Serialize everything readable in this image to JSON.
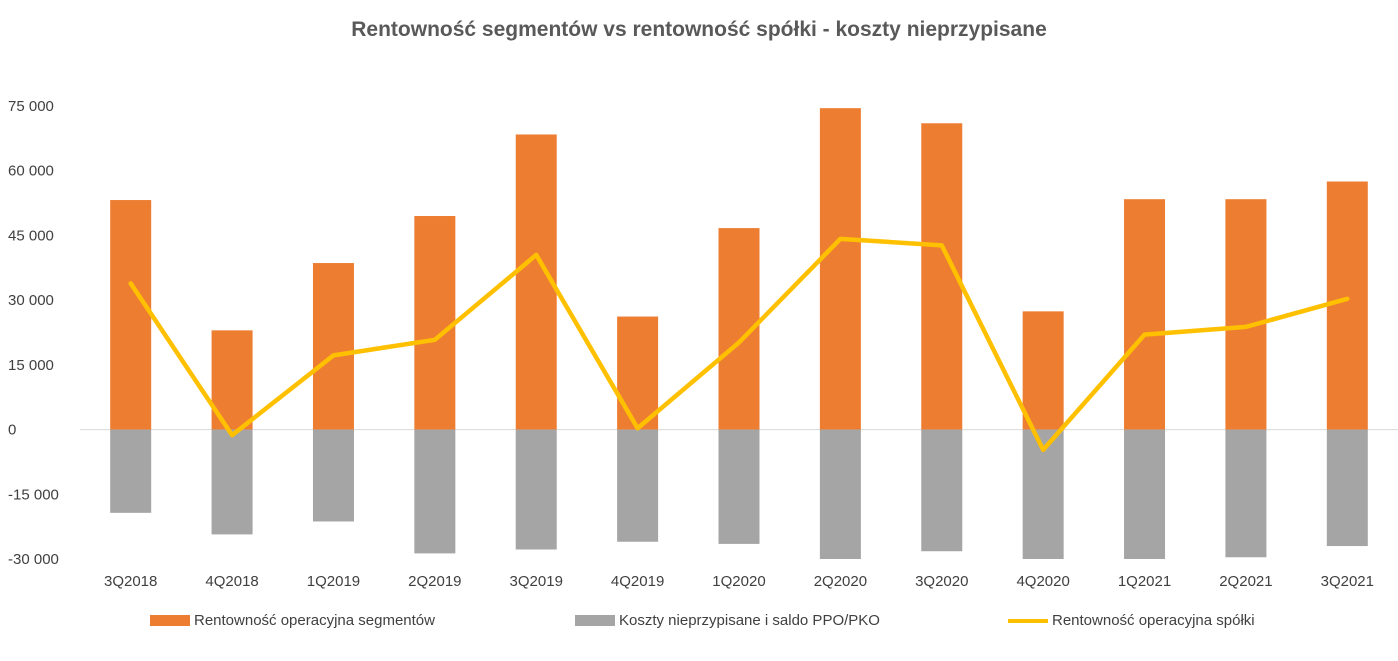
{
  "chart_data": {
    "type": "bar",
    "title": "Rentowność segmentów vs rentowność spółki - koszty nieprzypisane",
    "categories": [
      "3Q2018",
      "4Q2018",
      "1Q2019",
      "2Q2019",
      "3Q2019",
      "4Q2019",
      "1Q2020",
      "2Q2020",
      "3Q2020",
      "4Q2020",
      "1Q2021",
      "2Q2021",
      "3Q2021"
    ],
    "y_ticks": [
      "75 000",
      "60 000",
      "45 000",
      "30 000",
      "15 000",
      "0",
      "-15 000",
      "-30 000"
    ],
    "ylim": [
      -30000,
      75000
    ],
    "series": [
      {
        "name": "Rentowność operacyjna segmentów",
        "kind": "bar",
        "color": "#ED7D31",
        "values": [
          53200,
          23000,
          38600,
          49500,
          68400,
          26200,
          46700,
          74500,
          71000,
          27400,
          53400,
          53400,
          57500
        ]
      },
      {
        "name": "Koszty nieprzypisane i saldo PPO/PKO",
        "kind": "bar",
        "color": "#A5A5A5",
        "values": [
          -19300,
          -24300,
          -21300,
          -28700,
          -27800,
          -26000,
          -26500,
          -30000,
          -28200,
          -30000,
          -30000,
          -29600,
          -27000
        ]
      },
      {
        "name": "Rentowność operacyjna spółki",
        "kind": "line",
        "color": "#FFC000",
        "values": [
          33900,
          -1300,
          17200,
          20800,
          40500,
          300,
          20200,
          44200,
          42700,
          -4700,
          22000,
          23800,
          30300
        ]
      }
    ],
    "grid": false,
    "legend_position": "bottom"
  }
}
